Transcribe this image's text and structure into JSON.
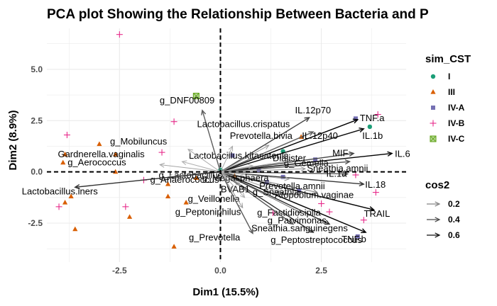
{
  "chart_data": {
    "type": "scatter",
    "title": "PCA plot Showing the Relationship Between Bacteria and P",
    "xlabel": "Dim1 (15.5%)",
    "ylabel": "Dim2 (8.9%)",
    "xlim": [
      -4.3,
      4.6
    ],
    "ylim": [
      -4.4,
      7.0
    ],
    "xticks": [
      -2.5,
      0.0,
      2.5
    ],
    "yticks": [
      -2.5,
      0.0,
      2.5,
      5.0
    ],
    "xtick_labels": [
      "-2.5",
      "0.0",
      "2.5"
    ],
    "ytick_labels": [
      "-2.5",
      "0.0",
      "2.5",
      "5.0"
    ],
    "grid": true,
    "legend_position": "right",
    "groups_legend": {
      "title": "sim_CST",
      "items": [
        {
          "label": "I",
          "shape": "circle",
          "color": "#1b9e77"
        },
        {
          "label": "III",
          "shape": "triangle",
          "color": "#d95f02"
        },
        {
          "label": "IV-A",
          "shape": "square",
          "color": "#7570b3"
        },
        {
          "label": "IV-B",
          "shape": "plus",
          "color": "#e7298a"
        },
        {
          "label": "IV-C",
          "shape": "boxcross",
          "color": "#66a61e"
        }
      ]
    },
    "cos2_legend": {
      "title": "cos2",
      "items": [
        {
          "label": "0.2",
          "value": 0.2
        },
        {
          "label": "0.4",
          "value": 0.4
        },
        {
          "label": "0.6",
          "value": 0.6
        }
      ]
    },
    "individuals": [
      {
        "group": "I",
        "x": 3.7,
        "y": 2.2
      },
      {
        "group": "I",
        "x": 1.55,
        "y": 1.0
      },
      {
        "group": "I",
        "x": 0.0,
        "y": 0.1
      },
      {
        "group": "III",
        "x": -3.85,
        "y": 0.85
      },
      {
        "group": "III",
        "x": -3.9,
        "y": 0.45
      },
      {
        "group": "III",
        "x": -3.85,
        "y": -1.5
      },
      {
        "group": "III",
        "x": -3.7,
        "y": -1.2
      },
      {
        "group": "III",
        "x": -3.6,
        "y": -2.8
      },
      {
        "group": "III",
        "x": -3.0,
        "y": 1.35
      },
      {
        "group": "III",
        "x": -2.6,
        "y": 0.85
      },
      {
        "group": "III",
        "x": -2.6,
        "y": 0.0
      },
      {
        "group": "III",
        "x": -2.25,
        "y": -2.2
      },
      {
        "group": "III",
        "x": -1.3,
        "y": -0.6
      },
      {
        "group": "III",
        "x": -1.3,
        "y": -1.2
      },
      {
        "group": "III",
        "x": -1.15,
        "y": -3.65
      },
      {
        "group": "III",
        "x": -0.85,
        "y": -1.5
      },
      {
        "group": "III",
        "x": -0.6,
        "y": -0.3
      },
      {
        "group": "III",
        "x": 0.35,
        "y": -0.2
      },
      {
        "group": "III",
        "x": 2.0,
        "y": 1.7
      },
      {
        "group": "IV-A",
        "x": 0.3,
        "y": 0.8
      },
      {
        "group": "IV-A",
        "x": 0.95,
        "y": 0.1
      },
      {
        "group": "IV-A",
        "x": 1.15,
        "y": -0.5
      },
      {
        "group": "IV-A",
        "x": 1.55,
        "y": -0.25
      },
      {
        "group": "IV-A",
        "x": 1.95,
        "y": -0.9
      },
      {
        "group": "IV-A",
        "x": 2.35,
        "y": 0.6
      },
      {
        "group": "IV-A",
        "x": 3.4,
        "y": -3.15
      },
      {
        "group": "IV-A",
        "x": 3.35,
        "y": 2.6
      },
      {
        "group": "IV-B",
        "x": -2.5,
        "y": 6.7
      },
      {
        "group": "IV-B",
        "x": -1.15,
        "y": 2.45
      },
      {
        "group": "IV-B",
        "x": -3.8,
        "y": 1.8
      },
      {
        "group": "IV-B",
        "x": -4.0,
        "y": -1.7
      },
      {
        "group": "IV-B",
        "x": -2.35,
        "y": -1.7
      },
      {
        "group": "IV-B",
        "x": -1.45,
        "y": 0.95
      },
      {
        "group": "IV-B",
        "x": -1.9,
        "y": -0.4
      },
      {
        "group": "IV-B",
        "x": 1.3,
        "y": -2.0
      },
      {
        "group": "IV-B",
        "x": 2.5,
        "y": -1.55
      },
      {
        "group": "IV-B",
        "x": 2.7,
        "y": -1.95
      },
      {
        "group": "IV-B",
        "x": 3.55,
        "y": -2.35
      },
      {
        "group": "IV-B",
        "x": 3.9,
        "y": 2.8
      },
      {
        "group": "IV-B",
        "x": 3.35,
        "y": -0.15
      },
      {
        "group": "IV-B",
        "x": 3.85,
        "y": -1.0
      },
      {
        "group": "IV-C",
        "x": -0.6,
        "y": 3.7
      }
    ],
    "variables": [
      {
        "label": "TNF.a",
        "x": 3.4,
        "y": 2.55
      },
      {
        "label": "IL.1b",
        "x": 3.55,
        "y": 2.1
      },
      {
        "label": "IL.12p70",
        "x": 2.2,
        "y": 2.65
      },
      {
        "label": "IL.12p40",
        "x": 2.3,
        "y": 1.95
      },
      {
        "label": "IL.6",
        "x": 4.25,
        "y": 0.9
      },
      {
        "label": "MIF",
        "x": 3.3,
        "y": 0.9
      },
      {
        "label": "Sneathia.amnii",
        "x": 3.2,
        "y": 0.5
      },
      {
        "label": "IL.1a",
        "x": 3.15,
        "y": -0.1
      },
      {
        "label": "IL.18",
        "x": 3.55,
        "y": -0.6
      },
      {
        "label": "TRAIL",
        "x": 3.8,
        "y": -1.85
      },
      {
        "label": "TNF.b",
        "x": 3.6,
        "y": -2.95
      },
      {
        "label": "Sneathia.sanguinegens",
        "x": 2.7,
        "y": -2.55
      },
      {
        "label": "g_Peptostreptococcus",
        "x": 2.3,
        "y": -2.95
      },
      {
        "label": "g_Fastidiosipila",
        "x": 2.0,
        "y": -2.0
      },
      {
        "label": "g_Parvimonas",
        "x": 1.8,
        "y": -2.55
      },
      {
        "label": "Atopobium.vaginae",
        "x": 2.4,
        "y": -1.0
      },
      {
        "label": "g_Sneathia",
        "x": 1.5,
        "y": -1.0
      },
      {
        "label": "Prevotella.amnii",
        "x": 1.7,
        "y": -0.35
      },
      {
        "label": "g_Gemella",
        "x": 2.1,
        "y": 0.15
      },
      {
        "label": "Dialister",
        "x": 1.75,
        "y": 0.55
      },
      {
        "label": "Prevotella.bivia",
        "x": 1.2,
        "y": 1.3
      },
      {
        "label": "Lactobacillus.kitasatonis",
        "x": 0.8,
        "y": 0.3
      },
      {
        "label": "g_Megasphaera",
        "x": 0.6,
        "y": -0.1
      },
      {
        "label": "BVAB1",
        "x": 0.5,
        "y": -0.65
      },
      {
        "label": "g_Veillonella",
        "x": 0.6,
        "y": -1.25
      },
      {
        "label": "g_Peptoniphilus",
        "x": 0.55,
        "y": -1.75
      },
      {
        "label": "g_Prevotella",
        "x": 0.8,
        "y": -3.0
      },
      {
        "label": "g_DNF00809",
        "x": -0.45,
        "y": 3.0
      },
      {
        "label": "Lactobacillus.crispatus",
        "x": 0.3,
        "y": 1.25
      },
      {
        "label": "g_Mobiluncus",
        "x": -0.8,
        "y": 1.1
      },
      {
        "label": "Gardnerella.vaginalis",
        "x": -0.95,
        "y": 0.5
      },
      {
        "label": "g_Aerococcus",
        "x": -1.5,
        "y": 0.35
      },
      {
        "label": "g_Lactobacillus",
        "x": -0.65,
        "y": -0.1
      },
      {
        "label": "g_Anaerococcus",
        "x": -1.3,
        "y": -0.25
      },
      {
        "label": "Lactobacillus.iners",
        "x": -3.6,
        "y": -0.75
      }
    ]
  }
}
